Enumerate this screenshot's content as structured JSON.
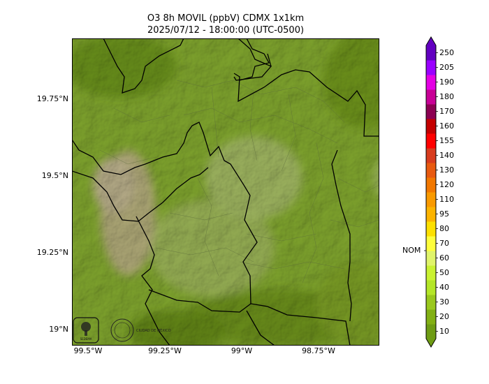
{
  "title": {
    "line1": "O3 8h MOVIL (ppbV) CDMX 1x1km",
    "line2": "2025/07/12 - 18:00:00 (UTC-0500)"
  },
  "map": {
    "lat_labels": [
      "19.75°N",
      "19.5°N",
      "19.25°N",
      "19°N"
    ],
    "lon_labels": [
      "99.5°W",
      "99.25°W",
      "99°W",
      "98.75°W"
    ],
    "logos": [
      "SEDEMA",
      "CIUDAD DE MÉXICO"
    ]
  },
  "colorbar": {
    "ticks": [
      "10",
      "20",
      "30",
      "40",
      "50",
      "60",
      "70",
      "80",
      "95",
      "110",
      "120",
      "130",
      "140",
      "155",
      "160",
      "170",
      "180",
      "190",
      "205",
      "250"
    ],
    "colors": [
      "#6e9c14",
      "#82b014",
      "#9ac81e",
      "#b4e628",
      "#caf232",
      "#e0f46a",
      "#fefe3c",
      "#fde000",
      "#fcb400",
      "#f99a00",
      "#f27800",
      "#e85a10",
      "#d83c1e",
      "#ff0000",
      "#c40000",
      "#8c0052",
      "#c80096",
      "#e400e4",
      "#9a00ff",
      "#6200c0"
    ],
    "nom_label": "NOM",
    "nom_value": 65
  },
  "colors": {
    "base_green": "#a4d43a",
    "dark_green": "#7fa81e",
    "light_green": "#c4e86c",
    "pale": "#e6dca0",
    "boundary": "#000000"
  }
}
